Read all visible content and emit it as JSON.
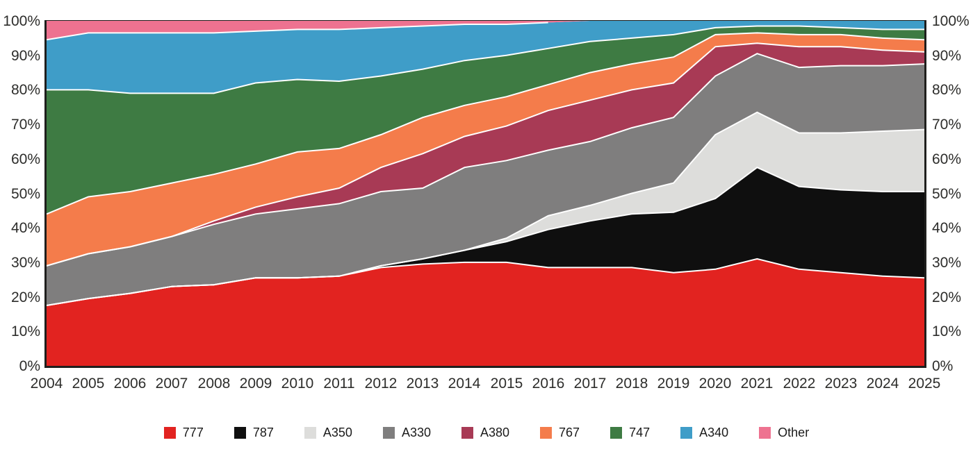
{
  "chart_data": {
    "type": "area",
    "variant": "stacked-100-percent",
    "title": "",
    "xlabel": "",
    "ylabel": "",
    "grid": false,
    "legend_position": "bottom",
    "axis_color": "#1f1f1d",
    "tick_text_color": "#2d2d2b",
    "separator_color": "#ffffff",
    "ylim": [
      0,
      100
    ],
    "yticks": [
      "0%",
      "10%",
      "20%",
      "30%",
      "40%",
      "50%",
      "60%",
      "70%",
      "80%",
      "90%",
      "100%"
    ],
    "x": [
      "2004",
      "2005",
      "2006",
      "2007",
      "2008",
      "2009",
      "2010",
      "2011",
      "2012",
      "2013",
      "2014",
      "2015",
      "2016",
      "2017",
      "2018",
      "2019",
      "2020",
      "2021",
      "2022",
      "2023",
      "2024",
      "2025"
    ],
    "series": [
      {
        "name": "777",
        "color": "#e22320",
        "values": [
          17.5,
          19.5,
          21,
          23,
          23.5,
          25.5,
          25.5,
          26,
          28.5,
          29.5,
          30,
          30,
          28.5,
          28.5,
          28.5,
          27,
          28,
          31,
          28,
          27,
          26,
          25.5
        ]
      },
      {
        "name": "787",
        "color": "#0f0f0f",
        "values": [
          0,
          0,
          0,
          0,
          0,
          0,
          0,
          0,
          0.5,
          1.5,
          3.5,
          6,
          11,
          13.5,
          15.5,
          17.5,
          20.5,
          26.5,
          24,
          24,
          24.5,
          25
        ]
      },
      {
        "name": "A350",
        "color": "#dddddb",
        "values": [
          0,
          0,
          0,
          0,
          0,
          0,
          0,
          0,
          0,
          0,
          0,
          1,
          4,
          4.5,
          6,
          8.5,
          18.5,
          16,
          15.5,
          16.5,
          17.5,
          18
        ]
      },
      {
        "name": "A330",
        "color": "#7f7e7e",
        "values": [
          11.5,
          13,
          13.5,
          14.5,
          17.5,
          18.5,
          20,
          21,
          21.5,
          20.5,
          24,
          22.5,
          19,
          18.5,
          19,
          19,
          17,
          17,
          19,
          19.5,
          19,
          19
        ]
      },
      {
        "name": "A380",
        "color": "#a83a55",
        "values": [
          0,
          0,
          0,
          0,
          1,
          2,
          3.5,
          4.5,
          7,
          10,
          9,
          10,
          11.5,
          12,
          11,
          10,
          8.5,
          3,
          6,
          5.5,
          4.5,
          3.5
        ]
      },
      {
        "name": "767",
        "color": "#f47c4b",
        "values": [
          15,
          16.5,
          16,
          15.5,
          13.5,
          12.5,
          13,
          11.5,
          9.5,
          10.5,
          9,
          8.5,
          7.5,
          8,
          7.5,
          7.5,
          3.5,
          3,
          3.5,
          3.5,
          3.5,
          3.5
        ]
      },
      {
        "name": "747",
        "color": "#3e7b43",
        "values": [
          36,
          31,
          28.5,
          26,
          23.5,
          23.5,
          21,
          19.5,
          17,
          14,
          13,
          12,
          10.5,
          9,
          7.5,
          6.5,
          2,
          2,
          2.5,
          2,
          2.5,
          3
        ]
      },
      {
        "name": "A340",
        "color": "#3f9dc8",
        "values": [
          14.5,
          16.5,
          17.5,
          17.5,
          17.5,
          15,
          14.5,
          15,
          14,
          12.5,
          10.5,
          9,
          7.5,
          6,
          5,
          4,
          2,
          1.5,
          1.5,
          2,
          2.5,
          2.5
        ]
      },
      {
        "name": "Other",
        "color": "#ee7290",
        "values": [
          5.5,
          3.5,
          3.5,
          3.5,
          3.5,
          3,
          2.5,
          2.5,
          2,
          1.5,
          1,
          1,
          0.5,
          0,
          0,
          0,
          0,
          0,
          0,
          0,
          0,
          0
        ]
      }
    ]
  }
}
